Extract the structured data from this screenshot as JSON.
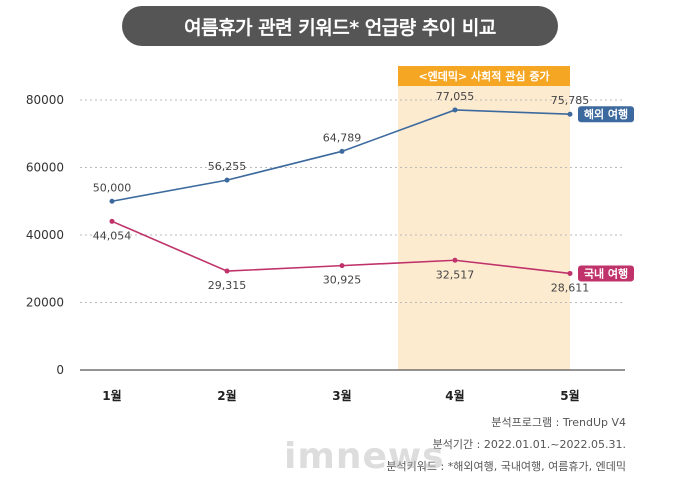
{
  "title": "여름휴가 관련 키워드* 언급량 추이 비교",
  "chart_data": {
    "type": "line",
    "categories": [
      "1월",
      "2월",
      "3월",
      "4월",
      "5월"
    ],
    "ylim": [
      0,
      80000
    ],
    "yticks": [
      0,
      20000,
      40000,
      60000,
      80000
    ],
    "grid": true,
    "series": [
      {
        "name": "해외 여행",
        "color": "#3d6a9e",
        "values": [
          50000,
          56255,
          64789,
          77055,
          75785
        ],
        "labels": [
          "50,000",
          "56,255",
          "64,789",
          "77,055",
          "75,785"
        ]
      },
      {
        "name": "국내 여행",
        "color": "#c0336a",
        "values": [
          44054,
          29315,
          30925,
          32517,
          28611
        ],
        "labels": [
          "44,054",
          "29,315",
          "30,925",
          "32,517",
          "28,611"
        ]
      }
    ],
    "highlight": {
      "label": "<엔데믹> 사회적 관심 증가",
      "from": "4월",
      "to": "5월",
      "fill": "#fdebd0",
      "label_color": "#f5a623"
    }
  },
  "info": {
    "line1": "분석프로그램 : TrendUp V4",
    "line2": "분석기간 : 2022.01.01.~2022.05.31.",
    "line3": "분석키워드 : *해외여행, 국내여행, 여름휴가, 엔데믹"
  },
  "watermark": "imnews"
}
